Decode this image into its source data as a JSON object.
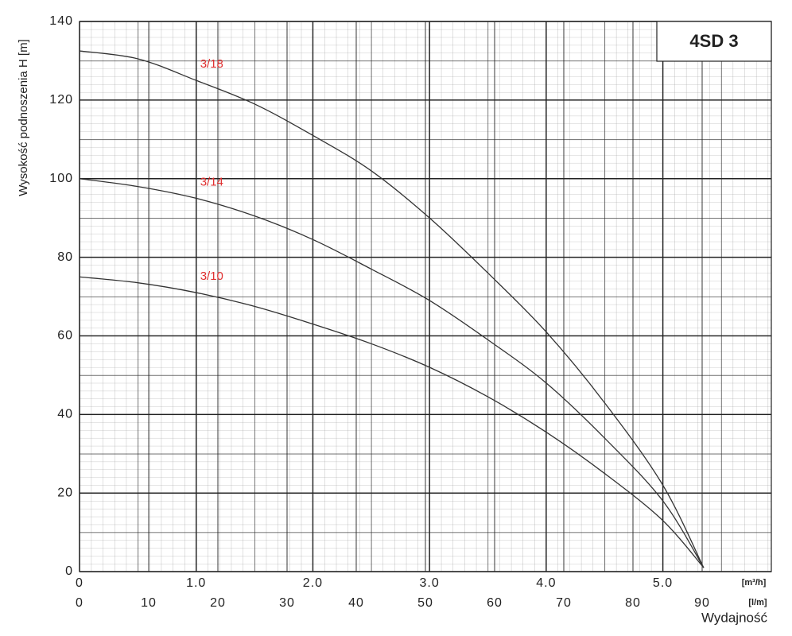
{
  "chart_data": {
    "type": "line",
    "title": "4SD 3",
    "y_label": "Wysokość podnoszenia H [m]",
    "x_label": "Wydajność",
    "x_unit": "[m³/h]",
    "x2_unit": "[l/m]",
    "x": [
      0,
      0.5,
      1.0,
      1.5,
      2.0,
      2.5,
      3.0,
      3.5,
      4.0,
      4.5,
      5.0,
      5.35
    ],
    "series": [
      {
        "name": "3/18",
        "color": "#333333",
        "values": [
          132.5,
          130.5,
          125,
          119,
          111,
          102,
          90,
          76,
          61,
          43,
          22,
          1
        ]
      },
      {
        "name": "3/14",
        "color": "#333333",
        "values": [
          100,
          98,
          95,
          90.5,
          84.5,
          77,
          69,
          59,
          48,
          34,
          18,
          1
        ]
      },
      {
        "name": "3/10",
        "color": "#333333",
        "values": [
          75,
          73.5,
          71,
          67.5,
          63,
          58,
          52,
          44.5,
          35.5,
          25,
          13,
          1
        ]
      }
    ],
    "label_color": "#e03030",
    "xlim": [
      0,
      5.93
    ],
    "xticks": [
      0,
      {
        "value": 1,
        "label": "1.0"
      },
      {
        "value": 2,
        "label": "2.0"
      },
      {
        "value": 3,
        "label": "3.0"
      },
      {
        "value": 4,
        "label": "4.0"
      },
      {
        "value": 5,
        "label": "5.0"
      }
    ],
    "x2lim": [
      0,
      100
    ],
    "x2ticks": [
      0,
      10,
      20,
      30,
      40,
      50,
      60,
      70,
      80,
      90
    ],
    "ylim": [
      0,
      140
    ],
    "yticks": [
      0,
      20,
      40,
      60,
      80,
      100,
      120,
      140
    ],
    "grid": true
  }
}
